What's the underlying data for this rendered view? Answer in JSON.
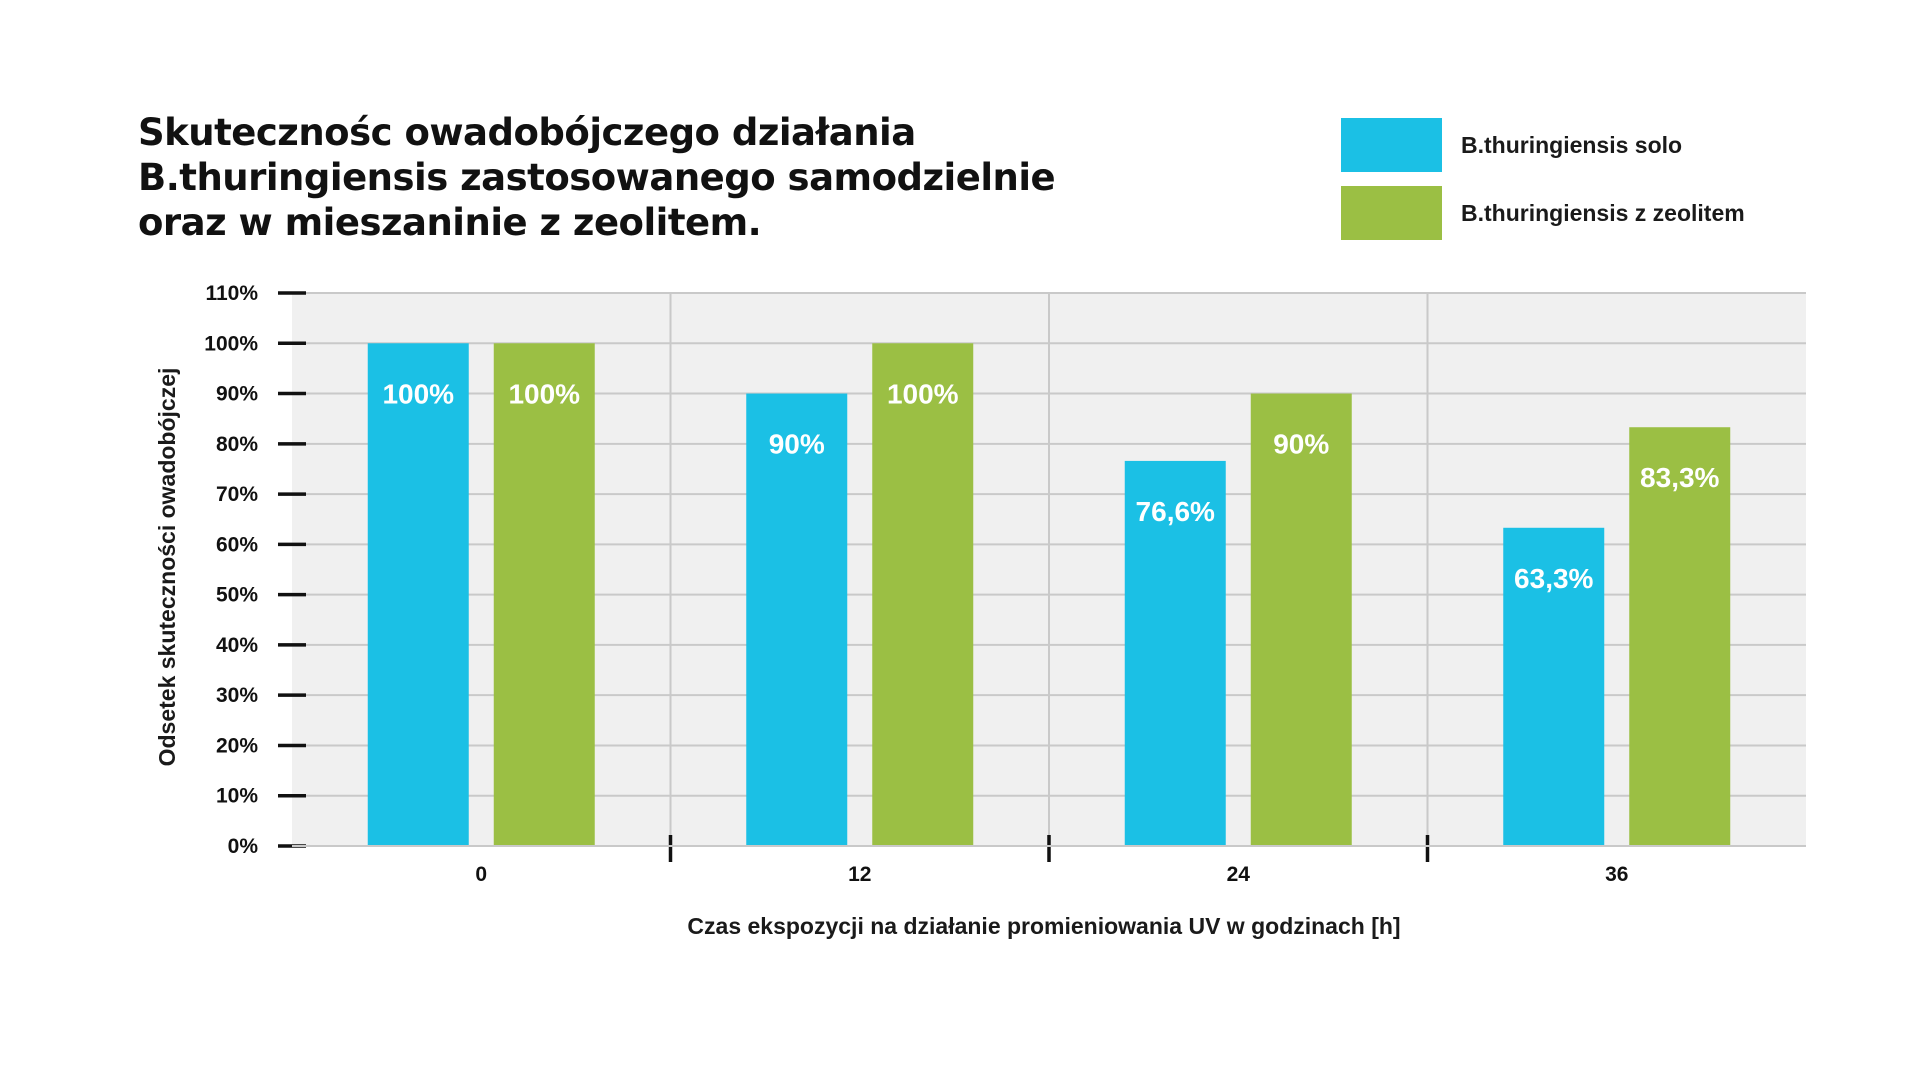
{
  "chart_data": {
    "type": "bar",
    "title_lines": [
      "Skutecznośc owadobójczego działania",
      "B.thuringiensis zastosowanego samodzielnie",
      "oraz w mieszaninie z zeolitem."
    ],
    "xlabel": "Czas ekspozycji na działanie promieniowania UV w godzinach [h]",
    "ylabel": "Odsetek skuteczności owadobójczej",
    "categories": [
      "0",
      "12",
      "24",
      "36"
    ],
    "y_ticks": [
      0,
      10,
      20,
      30,
      40,
      50,
      60,
      70,
      80,
      90,
      100,
      110
    ],
    "y_tick_labels": [
      "0%",
      "10%",
      "20%",
      "30%",
      "40%",
      "50%",
      "60%",
      "70%",
      "80%",
      "90%",
      "100%",
      "110%"
    ],
    "ylim": [
      0,
      110
    ],
    "grid": true,
    "legend_position": "top-right",
    "series": [
      {
        "name": "B.thuringiensis solo",
        "color": "#1bc0e5",
        "values": [
          100,
          90,
          76.6,
          63.3
        ],
        "labels": [
          "100%",
          "90%",
          "76,6%",
          "63,3%"
        ]
      },
      {
        "name": "B.thuringiensis z zeolitem",
        "color": "#9bbf44",
        "values": [
          100,
          100,
          90,
          83.3
        ],
        "labels": [
          "100%",
          "100%",
          "90%",
          "83,3%"
        ]
      }
    ],
    "colors": {
      "plot_background": "#f0f0f0",
      "grid": "#c9c9c9",
      "axis_marks": "#111111"
    }
  }
}
